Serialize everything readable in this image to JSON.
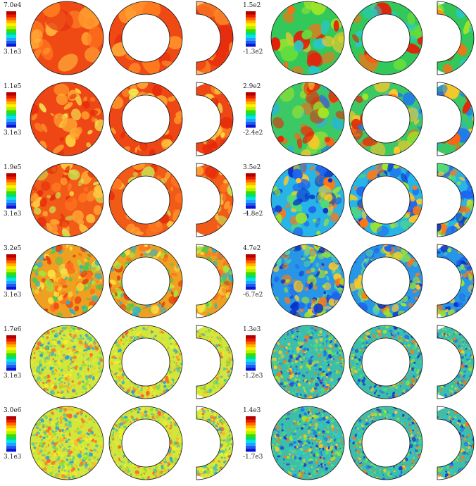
{
  "figure": {
    "rows": [
      {
        "left": {
          "max": "7.0e4",
          "min": "3.1e3",
          "palette": "hot_smooth"
        },
        "right": {
          "max": "1.5e2",
          "min": "-1.3e2",
          "palette": "bands"
        }
      },
      {
        "left": {
          "max": "1.1e5",
          "min": "3.1e3",
          "palette": "hot_plume"
        },
        "right": {
          "max": "2.9e2",
          "min": "-2.4e2",
          "palette": "bands_blob"
        }
      },
      {
        "left": {
          "max": "1.9e5",
          "min": "3.1e3",
          "palette": "hot_cells"
        },
        "right": {
          "max": "3.5e2",
          "min": "-4.8e2",
          "palette": "cool_cells"
        }
      },
      {
        "left": {
          "max": "3.2e5",
          "min": "3.1e3",
          "palette": "mixed_filaments"
        },
        "right": {
          "max": "4.7e2",
          "min": "-6.7e2",
          "palette": "cool_filaments"
        }
      },
      {
        "left": {
          "max": "1.7e6",
          "min": "3.1e3",
          "palette": "turbulent_yellow"
        },
        "right": {
          "max": "1.3e3",
          "min": "-1.2e3",
          "palette": "turbulent_mixed"
        }
      },
      {
        "left": {
          "max": "3.0e6",
          "min": "3.1e3",
          "palette": "turbulent_yellow"
        },
        "right": {
          "max": "1.4e3",
          "min": "-1.7e3",
          "palette": "turbulent_mixed"
        }
      }
    ],
    "colormap": [
      "#0a14d2",
      "#1e5af0",
      "#28a0ff",
      "#00e6e6",
      "#00dc78",
      "#3cdc00",
      "#b4f000",
      "#fff000",
      "#ffb400",
      "#ff6400",
      "#e61e00",
      "#b40000"
    ]
  }
}
